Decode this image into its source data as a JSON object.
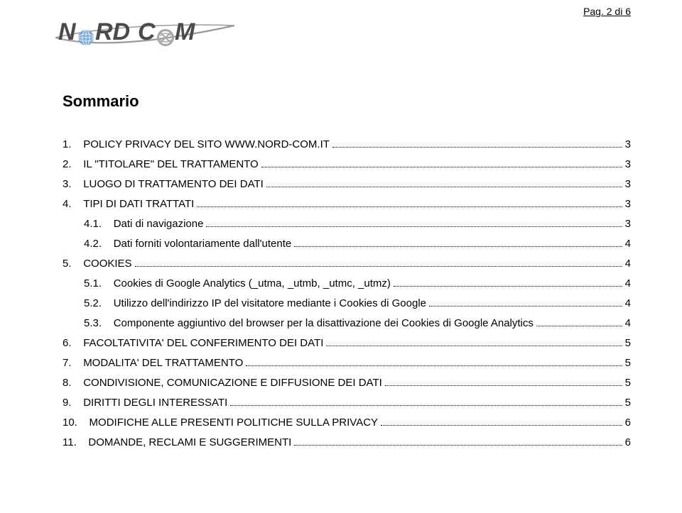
{
  "page_number": "Pag. 2 di 6",
  "logo": {
    "text_part1": "N",
    "text_part2": "RD",
    "text_part3": "C",
    "text_part4": "M",
    "text_colors": {
      "n": "#4a4a4a",
      "rd": "#4a4a4a",
      "c": "#4a4a4a",
      "m": "#4a4a4a"
    },
    "swoosh_color": "#9a9a9a",
    "globe_color": "#7aa9d6",
    "swirl_color": "#a8a8a8"
  },
  "title": "Sommario",
  "toc": [
    {
      "num": "1.",
      "label": "POLICY PRIVACY DEL SITO WWW.NORD-COM.IT",
      "page": "3",
      "indent": 0
    },
    {
      "num": "2.",
      "label": "IL \"TITOLARE\" DEL TRATTAMENTO",
      "page": "3",
      "indent": 0
    },
    {
      "num": "3.",
      "label": "LUOGO DI TRATTAMENTO DEI DATI",
      "page": "3",
      "indent": 0
    },
    {
      "num": "4.",
      "label": "TIPI DI DATI TRATTATI",
      "page": "3",
      "indent": 0
    },
    {
      "num": "4.1.",
      "label": "Dati di navigazione",
      "page": "3",
      "indent": 1
    },
    {
      "num": "4.2.",
      "label": "Dati forniti volontariamente dall'utente",
      "page": "4",
      "indent": 1
    },
    {
      "num": "5.",
      "label": "COOKIES",
      "page": "4",
      "indent": 0
    },
    {
      "num": "5.1.",
      "label": "Cookies di Google Analytics (_utma, _utmb, _utmc, _utmz)",
      "page": "4",
      "indent": 1
    },
    {
      "num": "5.2.",
      "label": "Utilizzo dell'indirizzo IP del visitatore mediante i Cookies di Google",
      "page": "4",
      "indent": 1
    },
    {
      "num": "5.3.",
      "label": "Componente aggiuntivo del browser per la disattivazione dei Cookies di Google Analytics",
      "page": "4",
      "indent": 1
    },
    {
      "num": "6.",
      "label": "FACOLTATIVITA' DEL CONFERIMENTO DEI DATI",
      "page": "5",
      "indent": 0
    },
    {
      "num": "7.",
      "label": "MODALITA' DEL TRATTAMENTO",
      "page": "5",
      "indent": 0
    },
    {
      "num": "8.",
      "label": "CONDIVISIONE, COMUNICAZIONE E DIFFUSIONE DEI DATI",
      "page": "5",
      "indent": 0
    },
    {
      "num": "9.",
      "label": "DIRITTI DEGLI INTERESSATI",
      "page": "5",
      "indent": 0
    },
    {
      "num": "10.",
      "label": "MODIFICHE ALLE PRESENTI POLITICHE SULLA PRIVACY",
      "page": "6",
      "indent": 0
    },
    {
      "num": "11.",
      "label": "DOMANDE, RECLAMI E SUGGERIMENTI",
      "page": "6",
      "indent": 0
    }
  ],
  "text_color": "#000000",
  "background_color": "#ffffff"
}
